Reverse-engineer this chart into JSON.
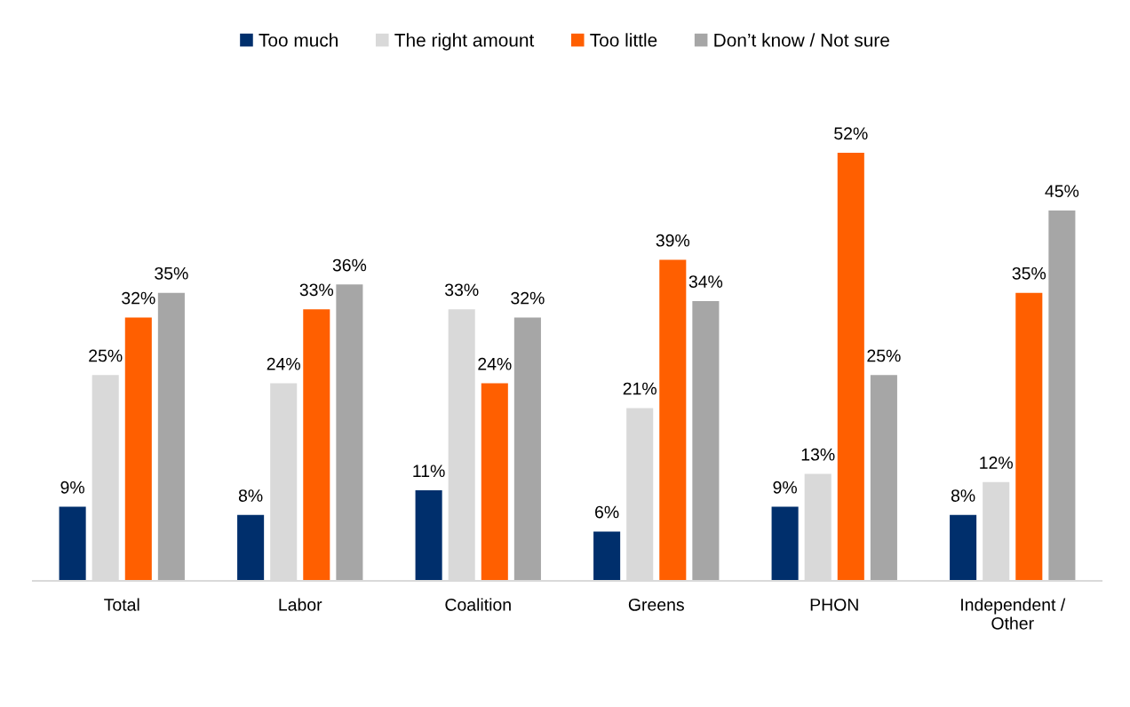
{
  "chart_data": {
    "type": "bar",
    "categories": [
      "Total",
      "Labor",
      "Coalition",
      "Greens",
      "PHON",
      "Independent /\nOther"
    ],
    "series": [
      {
        "name": "Too much",
        "color": "#002f6c",
        "values": [
          9,
          8,
          11,
          6,
          9,
          8
        ],
        "value_labels": [
          "9%",
          "8%",
          "11%",
          "6%",
          "9%",
          "8%"
        ]
      },
      {
        "name": "The right amount",
        "color": "#d9d9d9",
        "values": [
          25,
          24,
          33,
          21,
          13,
          12
        ],
        "value_labels": [
          "25%",
          "24%",
          "33%",
          "21%",
          "13%",
          "12%"
        ]
      },
      {
        "name": "Too little",
        "color": "#ff5f00",
        "values": [
          32,
          33,
          24,
          39,
          52,
          35
        ],
        "value_labels": [
          "32%",
          "33%",
          "24%",
          "39%",
          "52%",
          "35%"
        ]
      },
      {
        "name": "Don’t know / Not sure",
        "color": "#a6a6a6",
        "values": [
          35,
          36,
          32,
          34,
          25,
          45
        ],
        "value_labels": [
          "35%",
          "36%",
          "32%",
          "34%",
          "25%",
          "45%"
        ]
      }
    ],
    "tick_labels": "x",
    "grid": false,
    "legend": "top"
  }
}
